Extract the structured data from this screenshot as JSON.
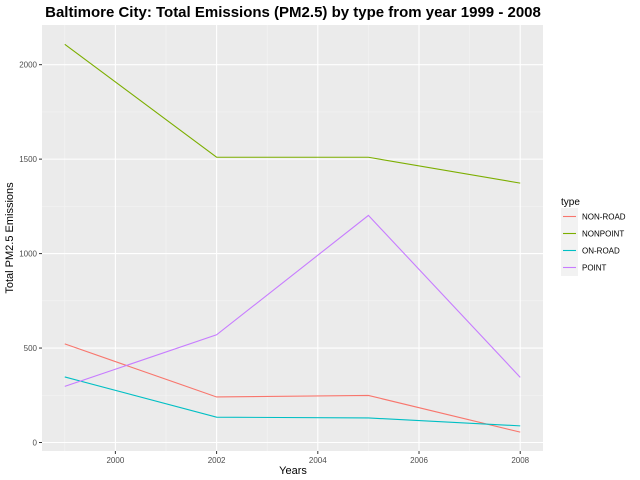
{
  "chart_data": {
    "type": "line",
    "title": "Baltimore City: Total Emissions (PM2.5) by type from year 1999 - 2008",
    "xlabel": "Years",
    "ylabel": "Total PM2.5 Emissions",
    "x": [
      1999,
      2002,
      2005,
      2008
    ],
    "xlim": [
      1998.55,
      2008.45
    ],
    "ylim": [
      -45,
      2210
    ],
    "xticks": [
      2000,
      2002,
      2004,
      2006,
      2008
    ],
    "yticks": [
      0,
      500,
      1000,
      1500,
      2000
    ],
    "xtick_labels": [
      "2000",
      "2002",
      "2004",
      "2006",
      "2008"
    ],
    "ytick_labels": [
      "0",
      "500",
      "1000",
      "1500",
      "2000"
    ],
    "grid": true,
    "legend": {
      "title": "type",
      "position": "right"
    },
    "series": [
      {
        "name": "NON-ROAD",
        "color": "#F8766D",
        "values": [
          522,
          241,
          249,
          55
        ]
      },
      {
        "name": "NONPOINT",
        "color": "#7CAE00",
        "values": [
          2108,
          1510,
          1510,
          1373
        ]
      },
      {
        "name": "ON-ROAD",
        "color": "#00BFC4",
        "values": [
          347,
          134,
          130,
          88
        ]
      },
      {
        "name": "POINT",
        "color": "#C77CFF",
        "values": [
          297,
          570,
          1202,
          345
        ]
      }
    ]
  }
}
